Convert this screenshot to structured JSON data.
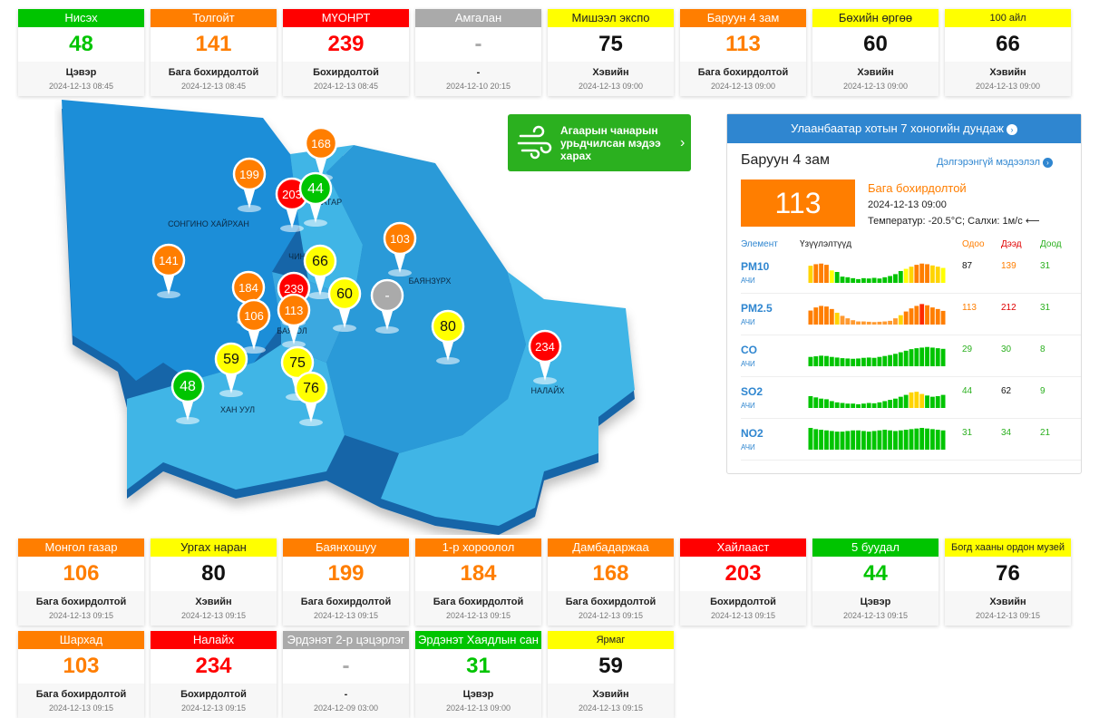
{
  "colors": {
    "good": "#00c400",
    "moderate": "#ffff00",
    "usg": "#ff7e00",
    "unhealthy": "#ff0000",
    "nodata": "#aaaaaa",
    "map_dark": "#1e8ed8",
    "map_light": "#40b5e6"
  },
  "top_row": [
    {
      "name": "Нисэх",
      "value": "48",
      "status": "Цэвэр",
      "time": "2024-12-13 08:45",
      "level": "good"
    },
    {
      "name": "Толгойт",
      "value": "141",
      "status": "Бага бохирдолтой",
      "time": "2024-12-13 08:45",
      "level": "usg"
    },
    {
      "name": "МҮОНРТ",
      "value": "239",
      "status": "Бохирдолтой",
      "time": "2024-12-13 08:45",
      "level": "unhealthy"
    },
    {
      "name": "Амгалан",
      "value": "-",
      "status": "-",
      "time": "2024-12-10 20:15",
      "level": "nodata"
    },
    {
      "name": "Мишээл экспо",
      "value": "75",
      "status": "Хэвийн",
      "time": "2024-12-13 09:00",
      "level": "moderate"
    },
    {
      "name": "Баруун 4 зам",
      "value": "113",
      "status": "Бага бохирдолтой",
      "time": "2024-12-13 09:00",
      "level": "usg"
    },
    {
      "name": "Бөхийн өргөө",
      "value": "60",
      "status": "Хэвийн",
      "time": "2024-12-13 09:00",
      "level": "moderate"
    },
    {
      "name": "100 айл",
      "value": "66",
      "status": "Хэвийн",
      "time": "2024-12-13 09:00",
      "level": "moderate",
      "small": true
    }
  ],
  "mid_row": [
    {
      "name": "Монгол газар",
      "value": "106",
      "status": "Бага бохирдолтой",
      "time": "2024-12-13 09:15",
      "level": "usg"
    },
    {
      "name": "Ургах наран",
      "value": "80",
      "status": "Хэвийн",
      "time": "2024-12-13 09:15",
      "level": "moderate"
    },
    {
      "name": "Баянхошуу",
      "value": "199",
      "status": "Бага бохирдолтой",
      "time": "2024-12-13 09:15",
      "level": "usg"
    },
    {
      "name": "1-р хороолол",
      "value": "184",
      "status": "Бага бохирдолтой",
      "time": "2024-12-13 09:15",
      "level": "usg"
    },
    {
      "name": "Дамбадаржаа",
      "value": "168",
      "status": "Бага бохирдолтой",
      "time": "2024-12-13 09:15",
      "level": "usg"
    },
    {
      "name": "Хайлааст",
      "value": "203",
      "status": "Бохирдолтой",
      "time": "2024-12-13 09:15",
      "level": "unhealthy"
    },
    {
      "name": "5 буудал",
      "value": "44",
      "status": "Цэвэр",
      "time": "2024-12-13 09:15",
      "level": "good"
    },
    {
      "name": "Богд хааны ордон музей",
      "value": "76",
      "status": "Хэвийн",
      "time": "2024-12-13 09:15",
      "level": "moderate",
      "small": true
    }
  ],
  "bottom_row": [
    {
      "name": "Шархад",
      "value": "103",
      "status": "Бага бохирдолтой",
      "time": "2024-12-13 09:15",
      "level": "usg"
    },
    {
      "name": "Налайх",
      "value": "234",
      "status": "Бохирдолтой",
      "time": "2024-12-13 09:15",
      "level": "unhealthy"
    },
    {
      "name": "Эрдэнэт 2-р цэцэрлэг",
      "value": "-",
      "status": "-",
      "time": "2024-12-09 03:00",
      "level": "nodata"
    },
    {
      "name": "Эрдэнэт Хаядлын сан",
      "value": "31",
      "status": "Цэвэр",
      "time": "2024-12-13 09:00",
      "level": "good"
    },
    {
      "name": "Ярмаг",
      "value": "59",
      "status": "Хэвийн",
      "time": "2024-12-13 09:15",
      "level": "moderate",
      "small": true
    }
  ],
  "map": {
    "districts": [
      {
        "label": "СОНГИНО ХАЙРХАН"
      },
      {
        "label": "БААТАР"
      },
      {
        "label": "ЧИНГ"
      },
      {
        "label": "БАЯНЗҮРХ"
      },
      {
        "label": "БАЯ ОЛ"
      },
      {
        "label": "ХАН УУЛ"
      },
      {
        "label": "НАЛАЙХ"
      }
    ],
    "markers": [
      {
        "value": "199",
        "level": "usg"
      },
      {
        "value": "168",
        "level": "usg"
      },
      {
        "value": "203",
        "level": "unhealthy"
      },
      {
        "value": "44",
        "level": "good"
      },
      {
        "value": "103",
        "level": "usg"
      },
      {
        "value": "141",
        "level": "usg"
      },
      {
        "value": "66",
        "level": "moderate"
      },
      {
        "value": "184",
        "level": "usg"
      },
      {
        "value": "239",
        "level": "unhealthy"
      },
      {
        "value": "60",
        "level": "moderate"
      },
      {
        "value": "-",
        "level": "nodata"
      },
      {
        "value": "106",
        "level": "usg"
      },
      {
        "value": "113",
        "level": "usg"
      },
      {
        "value": "80",
        "level": "moderate"
      },
      {
        "value": "234",
        "level": "unhealthy"
      },
      {
        "value": "59",
        "level": "moderate"
      },
      {
        "value": "75",
        "level": "moderate"
      },
      {
        "value": "48",
        "level": "good"
      },
      {
        "value": "76",
        "level": "moderate"
      }
    ]
  },
  "forecast": {
    "label": "Агаарын чанарын урьдчилсан мэдээ харах",
    "icon": "wind-icon"
  },
  "panel": {
    "header": "Улаанбаатар хотын 7 хоногийн дундаж",
    "station": "Баруун 4 зам",
    "more": "Дэлгэрэнгүй мэдээлэл",
    "aqi": "113",
    "status": "Бага бохирдолтой",
    "time": "2024-12-13 09:00",
    "weather": "Температур: -20.5°C; Салхи: 1м/с",
    "wind_arrow": "⟵",
    "columns": {
      "element": "Элемент",
      "trend": "Үзүүлэлтүүд",
      "current": "Одоо",
      "max": "Дээд",
      "min": "Доод"
    },
    "pollutants": [
      {
        "name": "PM10",
        "unit": "АЧИ",
        "current": "87",
        "max": "139",
        "min": "31",
        "cur_level": "moderate",
        "max_level": "usg",
        "min_level": "good",
        "bars": [
          55,
          60,
          62,
          58,
          40,
          35,
          20,
          18,
          15,
          12,
          15,
          14,
          16,
          14,
          18,
          22,
          28,
          38,
          45,
          52,
          58,
          62,
          60,
          56,
          52,
          48
        ]
      },
      {
        "name": "PM2.5",
        "unit": "АЧИ",
        "current": "113",
        "max": "212",
        "min": "31",
        "cur_level": "usg",
        "max_level": "unhealthy",
        "min_level": "good",
        "bars": [
          45,
          55,
          60,
          58,
          50,
          38,
          28,
          20,
          14,
          10,
          10,
          9,
          8,
          9,
          10,
          12,
          20,
          30,
          42,
          52,
          60,
          66,
          62,
          55,
          50,
          44
        ]
      },
      {
        "name": "CO",
        "unit": "АЧИ",
        "current": "29",
        "max": "30",
        "min": "8",
        "cur_level": "good",
        "max_level": "good",
        "min_level": "good",
        "bars": [
          30,
          32,
          34,
          33,
          30,
          28,
          26,
          25,
          24,
          25,
          27,
          28,
          27,
          30,
          33,
          36,
          40,
          45,
          50,
          55,
          58,
          60,
          62,
          60,
          58,
          56
        ]
      },
      {
        "name": "SO2",
        "unit": "АЧИ",
        "current": "44",
        "max": "62",
        "min": "9",
        "cur_level": "good",
        "max_level": "moderate",
        "min_level": "good",
        "bars": [
          38,
          34,
          30,
          28,
          22,
          18,
          16,
          14,
          14,
          12,
          14,
          16,
          15,
          18,
          22,
          26,
          30,
          36,
          42,
          50,
          52,
          45,
          40,
          36,
          38,
          42
        ]
      },
      {
        "name": "NO2",
        "unit": "АЧИ",
        "current": "31",
        "max": "34",
        "min": "21",
        "cur_level": "good",
        "max_level": "good",
        "min_level": "good",
        "bars": [
          70,
          66,
          64,
          62,
          60,
          58,
          58,
          60,
          62,
          62,
          60,
          58,
          60,
          62,
          64,
          62,
          60,
          62,
          64,
          66,
          68,
          70,
          68,
          66,
          64,
          62
        ]
      }
    ]
  }
}
